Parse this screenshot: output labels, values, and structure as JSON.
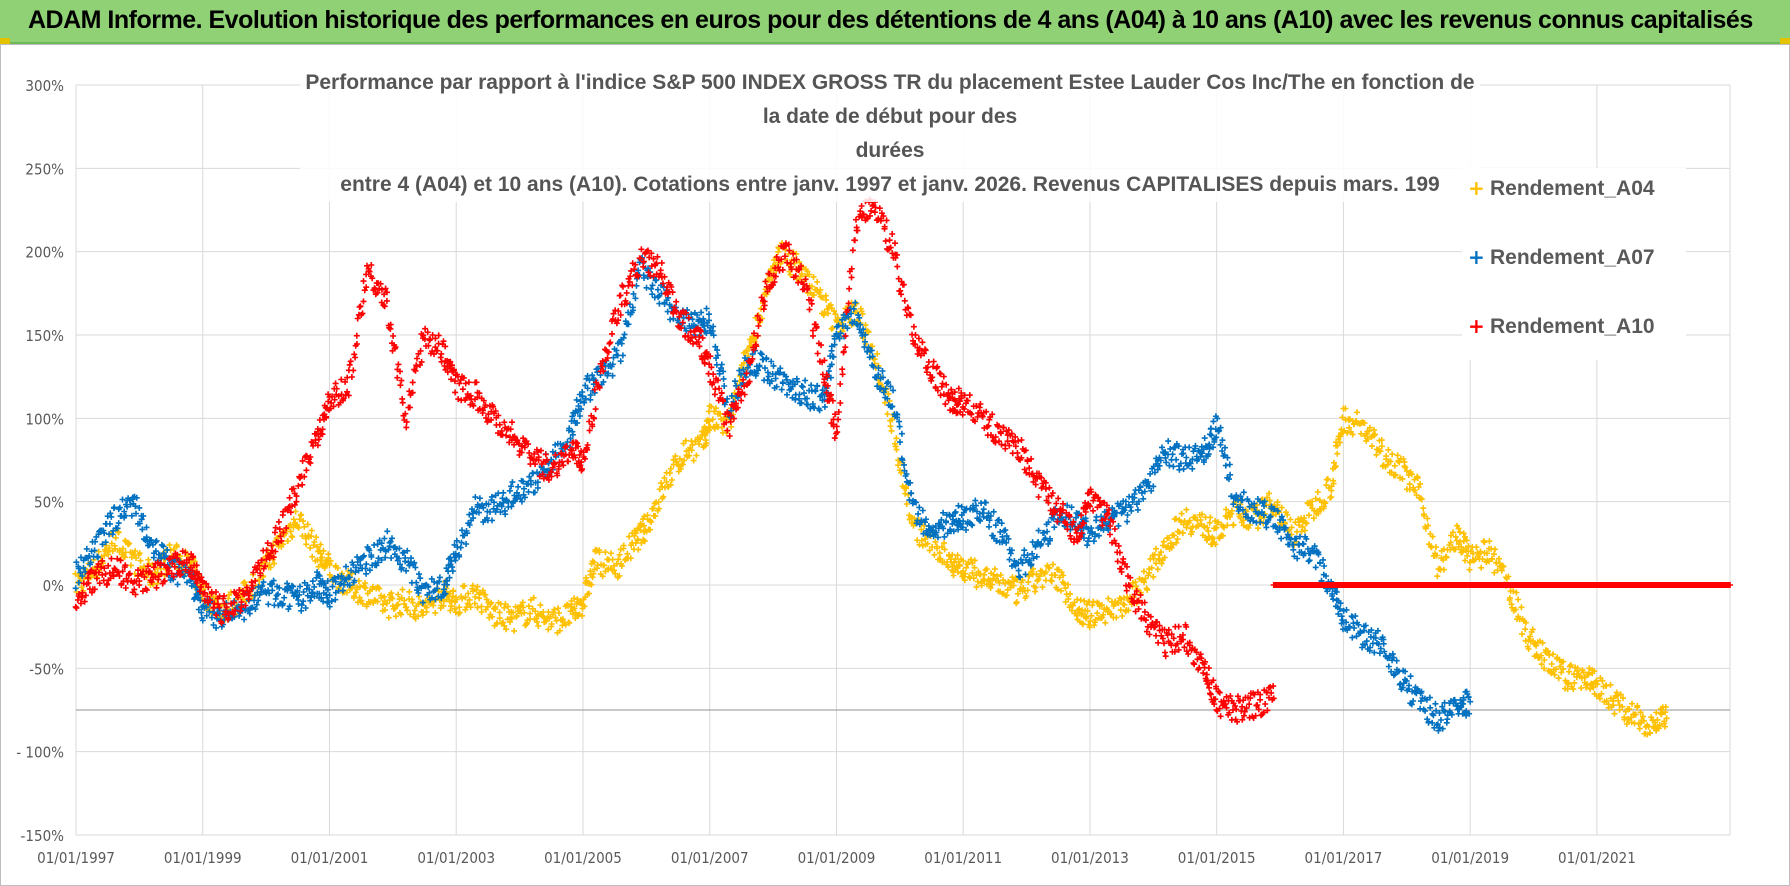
{
  "banner": {
    "text": "ADAM Informe. Evolution historique des performances en euros pour des détentions de 4 ans (A04) à 10 ans (A10) avec les revenus connus capitalisés"
  },
  "chart_data": {
    "type": "scatter",
    "title_lines": [
      "Performance par rapport à l'indice S&P 500 INDEX GROSS TR  du placement Estee Lauder Cos Inc/The en fonction de la date de début pour des",
      "durées",
      "entre 4 (A04) et 10 ans (A10). Cotations entre janv. 1997 et janv. 2026. Revenus CAPITALISES depuis mars. 199"
    ],
    "y_ticks": [
      300,
      250,
      200,
      150,
      100,
      50,
      0,
      -50,
      -100,
      -150
    ],
    "y_tick_labels": [
      "300%",
      "250%",
      "200%",
      "150%",
      "100%",
      "50%",
      "0%",
      "-50%",
      "- 100%",
      "-150%"
    ],
    "ylim": [
      -150,
      300
    ],
    "x_ticks": [
      1997,
      1999,
      2001,
      2003,
      2005,
      2007,
      2009,
      2011,
      2013,
      2015,
      2017,
      2019,
      2021
    ],
    "x_tick_labels": [
      "01/01/1997",
      "01/01/1999",
      "01/01/2001",
      "01/01/2003",
      "01/01/2005",
      "01/01/2007",
      "01/01/2009",
      "01/01/2011",
      "01/01/2013",
      "01/01/2015",
      "01/01/2017",
      "01/01/2019",
      "01/01/2021"
    ],
    "xlim": [
      1997,
      2023.1
    ],
    "reference_line_y": -75,
    "series": [
      {
        "name": "Rendement_A04",
        "color": "#ffc000",
        "x": [
          1997.0,
          1997.3,
          1997.6,
          1997.9,
          1998.2,
          1998.5,
          1998.8,
          1999.0,
          1999.3,
          1999.6,
          1999.9,
          2000.2,
          2000.5,
          2000.8,
          2001.0,
          2001.3,
          2001.6,
          2001.9,
          2002.2,
          2002.5,
          2002.8,
          2003.0,
          2003.3,
          2003.6,
          2003.9,
          2004.2,
          2004.5,
          2004.8,
          2005.0,
          2005.2,
          2005.5,
          2005.8,
          2006.0,
          2006.3,
          2006.6,
          2006.9,
          2007.0,
          2007.3,
          2007.6,
          2007.9,
          2008.1,
          2008.4,
          2008.7,
          2009.0,
          2009.3,
          2009.6,
          2009.9,
          2010.2,
          2010.5,
          2010.8,
          2011.0,
          2011.3,
          2011.6,
          2011.9,
          2012.2,
          2012.5,
          2012.8,
          2013.0,
          2013.3,
          2013.6,
          2013.9,
          2014.2,
          2014.5,
          2014.8,
          2015.0,
          2015.3,
          2015.6,
          2015.9,
          2016.2,
          2016.5,
          2016.8,
          2017.0,
          2017.3,
          2017.6,
          2017.9,
          2018.2,
          2018.5,
          2018.8,
          2019.0,
          2019.3,
          2019.6,
          2019.9,
          2020.2,
          2020.5,
          2020.8,
          2021.0,
          2021.3,
          2021.6,
          2021.9,
          2022.1
        ],
        "y": [
          0,
          10,
          28,
          15,
          5,
          18,
          12,
          -5,
          -15,
          -8,
          5,
          25,
          40,
          20,
          10,
          0,
          -5,
          -12,
          -10,
          -15,
          -5,
          -10,
          -5,
          -18,
          -20,
          -15,
          -22,
          -18,
          -10,
          15,
          10,
          25,
          35,
          60,
          80,
          85,
          100,
          95,
          140,
          175,
          200,
          190,
          175,
          155,
          165,
          140,
          95,
          35,
          25,
          15,
          10,
          5,
          0,
          -5,
          5,
          5,
          -15,
          -18,
          -15,
          -10,
          5,
          25,
          40,
          35,
          30,
          45,
          40,
          50,
          30,
          45,
          60,
          100,
          95,
          80,
          70,
          55,
          10,
          30,
          15,
          20,
          0,
          -30,
          -45,
          -55,
          -55,
          -60,
          -70,
          -80,
          -83,
          -80
        ]
      },
      {
        "name": "Rendement_A07",
        "color": "#0070c0",
        "x": [
          1997.0,
          1997.3,
          1997.6,
          1997.9,
          1998.2,
          1998.5,
          1998.8,
          1999.0,
          1999.3,
          1999.6,
          1999.9,
          2000.2,
          2000.5,
          2000.8,
          2001.0,
          2001.3,
          2001.6,
          2001.9,
          2002.2,
          2002.5,
          2002.8,
          2003.0,
          2003.3,
          2003.6,
          2003.9,
          2004.2,
          2004.5,
          2004.8,
          2005.0,
          2005.3,
          2005.6,
          2005.9,
          2006.2,
          2006.5,
          2006.8,
          2007.0,
          2007.3,
          2007.6,
          2007.9,
          2008.2,
          2008.5,
          2008.8,
          2009.0,
          2009.3,
          2009.6,
          2009.9,
          2010.2,
          2010.5,
          2010.8,
          2011.0,
          2011.3,
          2011.6,
          2011.9,
          2012.2,
          2012.5,
          2012.8,
          2013.0,
          2013.3,
          2013.6,
          2013.9,
          2014.2,
          2014.5,
          2014.8,
          2015.0,
          2015.3,
          2015.6,
          2015.9,
          2016.2,
          2016.5,
          2016.8,
          2017.0,
          2017.3,
          2017.6,
          2017.9,
          2018.2,
          2018.5,
          2018.8,
          2019.0
        ],
        "y": [
          5,
          20,
          40,
          50,
          25,
          10,
          5,
          -15,
          -20,
          -15,
          -5,
          -5,
          -10,
          0,
          -5,
          5,
          15,
          25,
          15,
          -5,
          0,
          20,
          45,
          45,
          55,
          60,
          75,
          90,
          115,
          125,
          140,
          190,
          175,
          160,
          155,
          160,
          105,
          135,
          130,
          120,
          115,
          110,
          150,
          165,
          130,
          110,
          45,
          30,
          40,
          40,
          45,
          30,
          10,
          25,
          40,
          40,
          30,
          40,
          45,
          60,
          80,
          75,
          80,
          95,
          50,
          45,
          40,
          25,
          20,
          0,
          -20,
          -30,
          -35,
          -55,
          -70,
          -80,
          -75,
          -70
        ]
      },
      {
        "name": "Rendement_A10",
        "color": "#ff0000",
        "x": [
          1997.0,
          1997.3,
          1997.6,
          1997.9,
          1998.2,
          1998.5,
          1998.8,
          1999.0,
          1999.3,
          1999.6,
          1999.9,
          2000.2,
          2000.5,
          2000.8,
          2001.0,
          2001.3,
          2001.6,
          2001.9,
          2002.2,
          2002.5,
          2002.8,
          2003.0,
          2003.3,
          2003.6,
          2003.9,
          2004.2,
          2004.5,
          2004.8,
          2005.0,
          2005.3,
          2005.6,
          2005.9,
          2006.2,
          2006.5,
          2006.8,
          2007.0,
          2007.3,
          2007.6,
          2007.9,
          2008.2,
          2008.5,
          2008.8,
          2009.0,
          2009.3,
          2009.6,
          2009.9,
          2010.2,
          2010.5,
          2010.8,
          2011.0,
          2011.3,
          2011.6,
          2011.9,
          2012.2,
          2012.5,
          2012.8,
          2013.0,
          2013.3,
          2013.6,
          2013.9,
          2014.2,
          2014.5,
          2014.8,
          2015.0,
          2015.3,
          2015.6,
          2015.9
        ],
        "y": [
          -10,
          5,
          10,
          0,
          5,
          10,
          15,
          -5,
          -15,
          -10,
          10,
          30,
          60,
          90,
          110,
          120,
          190,
          170,
          100,
          150,
          140,
          120,
          115,
          100,
          90,
          75,
          70,
          80,
          75,
          130,
          170,
          195,
          190,
          160,
          150,
          130,
          95,
          125,
          180,
          200,
          180,
          130,
          90,
          215,
          230,
          200,
          150,
          130,
          110,
          110,
          100,
          90,
          80,
          60,
          45,
          30,
          50,
          40,
          0,
          -20,
          -35,
          -30,
          -50,
          -70,
          -75,
          -72,
          -68
        ]
      },
      {
        "name": "Rendement_A10_flat",
        "color": "#ff0000",
        "x_start": 2015.9,
        "x_end": 2023.1,
        "y": 0
      }
    ],
    "legend": [
      {
        "name": "Rendement_A04",
        "color": "#ffc000"
      },
      {
        "name": "Rendement_A07",
        "color": "#0070c0"
      },
      {
        "name": "Rendement_A10",
        "color": "#ff0000"
      }
    ]
  }
}
